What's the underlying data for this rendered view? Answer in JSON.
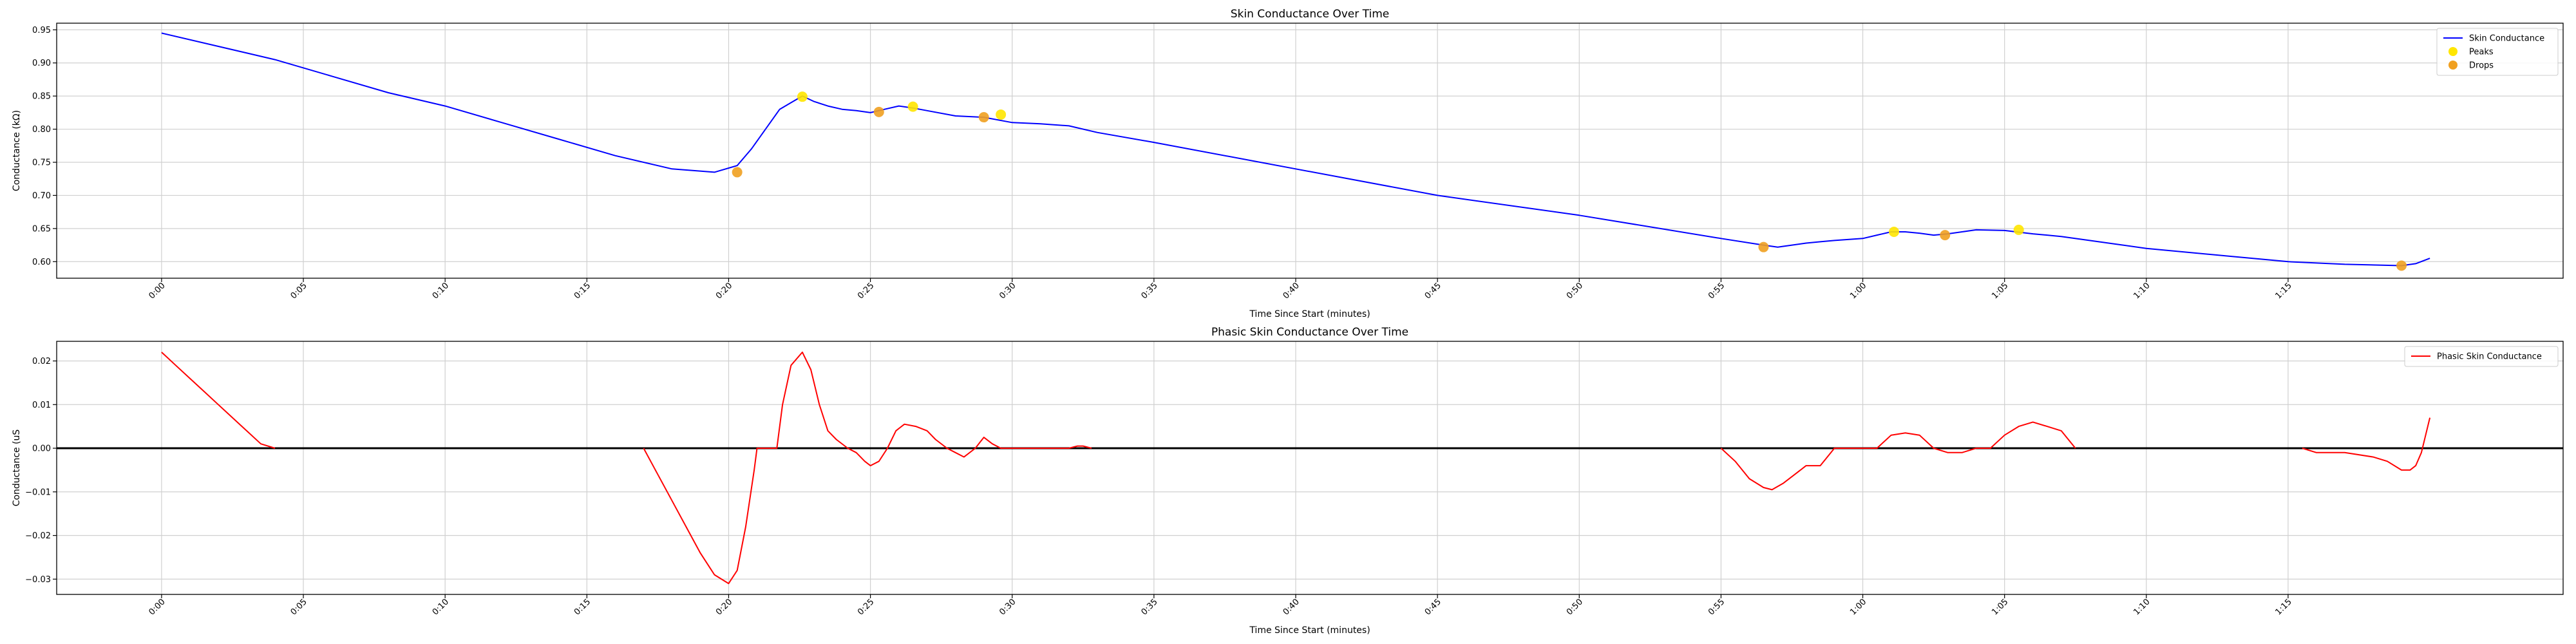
{
  "chart_data": [
    {
      "type": "line",
      "title": "Skin Conductance Over Time",
      "xlabel": "Time Since Start (minutes)",
      "ylabel": "Conductance (kΩ)",
      "xlim": [
        -0.037,
        0.847
      ],
      "ylim": [
        0.575,
        0.96
      ],
      "x_ticks": [
        "0:00",
        "0:05",
        "0:10",
        "0:15",
        "0:20",
        "0:25",
        "0:30",
        "0:35",
        "0:40",
        "0:45",
        "0:50",
        "0:55",
        "1:00",
        "1:05",
        "1:10",
        "1:15"
      ],
      "y_ticks": [
        "0.60",
        "0.65",
        "0.70",
        "0.75",
        "0.80",
        "0.85",
        "0.90",
        "0.95"
      ],
      "grid": true,
      "legend_position": "top-right",
      "series": [
        {
          "name": "Skin Conductance",
          "kind": "line",
          "color": "#0000ff",
          "x": [
            0.0,
            0.02,
            0.04,
            0.06,
            0.08,
            0.1,
            0.12,
            0.14,
            0.16,
            0.18,
            0.195,
            0.203,
            0.208,
            0.213,
            0.218,
            0.222,
            0.226,
            0.23,
            0.235,
            0.24,
            0.245,
            0.25,
            0.255,
            0.26,
            0.265,
            0.27,
            0.28,
            0.29,
            0.3,
            0.31,
            0.32,
            0.33,
            0.35,
            0.4,
            0.45,
            0.5,
            0.55,
            0.565,
            0.57,
            0.575,
            0.58,
            0.585,
            0.59,
            0.6,
            0.605,
            0.61,
            0.615,
            0.62,
            0.625,
            0.63,
            0.635,
            0.64,
            0.65,
            0.66,
            0.67,
            0.68,
            0.7,
            0.73,
            0.75,
            0.77,
            0.79,
            0.795,
            0.8
          ],
          "y": [
            0.945,
            0.925,
            0.905,
            0.88,
            0.855,
            0.835,
            0.81,
            0.785,
            0.76,
            0.74,
            0.735,
            0.745,
            0.77,
            0.8,
            0.83,
            0.84,
            0.85,
            0.842,
            0.835,
            0.83,
            0.828,
            0.825,
            0.83,
            0.835,
            0.832,
            0.828,
            0.82,
            0.818,
            0.81,
            0.808,
            0.805,
            0.795,
            0.78,
            0.74,
            0.7,
            0.67,
            0.635,
            0.625,
            0.622,
            0.625,
            0.628,
            0.63,
            0.632,
            0.635,
            0.64,
            0.645,
            0.645,
            0.643,
            0.64,
            0.642,
            0.645,
            0.648,
            0.647,
            0.642,
            0.638,
            0.632,
            0.62,
            0.608,
            0.6,
            0.596,
            0.594,
            0.597,
            0.605
          ]
        },
        {
          "name": "Peaks",
          "kind": "scatter",
          "color": "#ffe600",
          "x": [
            0.226,
            0.265,
            0.296,
            0.611,
            0.655
          ],
          "y": [
            0.849,
            0.834,
            0.822,
            0.645,
            0.648
          ]
        },
        {
          "name": "Drops",
          "kind": "scatter",
          "color": "#f0a020",
          "x": [
            0.203,
            0.253,
            0.29,
            0.565,
            0.629,
            0.79
          ],
          "y": [
            0.735,
            0.826,
            0.818,
            0.622,
            0.64,
            0.594
          ]
        }
      ]
    },
    {
      "type": "line",
      "title": "Phasic Skin Conductance Over Time",
      "xlabel": "Time Since Start (minutes)",
      "ylabel": "Conductance (uS",
      "xlim": [
        -0.037,
        0.847
      ],
      "ylim": [
        -0.0335,
        0.0245
      ],
      "x_ticks": [
        "0:00",
        "0:05",
        "0:10",
        "0:15",
        "0:20",
        "0:25",
        "0:30",
        "0:35",
        "0:40",
        "0:45",
        "0:50",
        "0:55",
        "1:00",
        "1:05",
        "1:10",
        "1:15"
      ],
      "y_ticks": [
        "−0.03",
        "−0.02",
        "−0.01",
        "0.00",
        "0.01",
        "0.02"
      ],
      "grid": true,
      "zero_line": true,
      "legend_position": "top-right",
      "series": [
        {
          "name": "Phasic Skin Conductance",
          "kind": "line",
          "color": "#ff0000",
          "segments": [
            {
              "x": [
                0.0,
                0.005,
                0.01,
                0.015,
                0.02,
                0.025,
                0.03,
                0.035,
                0.04
              ],
              "y": [
                0.022,
                0.019,
                0.016,
                0.013,
                0.01,
                0.007,
                0.004,
                0.001,
                0.0
              ]
            },
            {
              "x": [
                0.17,
                0.175,
                0.18,
                0.185,
                0.19,
                0.195,
                0.2,
                0.203,
                0.206,
                0.209,
                0.21,
                0.215,
                0.217,
                0.219,
                0.222,
                0.226,
                0.229,
                0.232,
                0.235,
                0.238,
                0.242,
                0.245,
                0.248,
                0.25,
                0.253,
                0.256,
                0.259,
                0.262,
                0.266,
                0.27,
                0.273,
                0.277,
                0.28,
                0.283,
                0.287,
                0.29,
                0.293,
                0.296,
                0.3,
                0.305,
                0.31,
                0.315,
                0.32,
                0.323,
                0.325,
                0.328
              ],
              "y": [
                0.0,
                -0.006,
                -0.012,
                -0.018,
                -0.024,
                -0.029,
                -0.031,
                -0.028,
                -0.018,
                -0.005,
                0.0,
                0.0,
                0.0,
                0.01,
                0.019,
                0.022,
                0.018,
                0.01,
                0.004,
                0.002,
                0.0,
                -0.001,
                -0.003,
                -0.004,
                -0.003,
                0.0,
                0.004,
                0.0055,
                0.005,
                0.004,
                0.002,
                0.0,
                -0.001,
                -0.002,
                0.0,
                0.0025,
                0.001,
                0.0,
                0.0,
                0.0,
                0.0,
                0.0,
                0.0,
                0.0005,
                0.0005,
                0.0
              ]
            },
            {
              "x": [
                0.55,
                0.555,
                0.56,
                0.565,
                0.568,
                0.572,
                0.576,
                0.58,
                0.585,
                0.59,
                0.595,
                0.6,
                0.605,
                0.61,
                0.615,
                0.62,
                0.625,
                0.63,
                0.635,
                0.64,
                0.645,
                0.65,
                0.655,
                0.66,
                0.665,
                0.67,
                0.675
              ],
              "y": [
                0.0,
                -0.003,
                -0.007,
                -0.009,
                -0.0095,
                -0.008,
                -0.006,
                -0.004,
                -0.004,
                0.0,
                0.0,
                0.0,
                0.0,
                0.003,
                0.0035,
                0.003,
                0.0,
                -0.001,
                -0.001,
                0.0,
                0.0,
                0.003,
                0.005,
                0.006,
                0.005,
                0.004,
                0.0
              ]
            },
            {
              "x": [
                0.755,
                0.76,
                0.77,
                0.78,
                0.785,
                0.79,
                0.793,
                0.795,
                0.797,
                0.8
              ],
              "y": [
                0.0,
                -0.001,
                -0.001,
                -0.002,
                -0.003,
                -0.005,
                -0.005,
                -0.004,
                -0.001,
                0.007
              ]
            }
          ]
        }
      ]
    }
  ]
}
